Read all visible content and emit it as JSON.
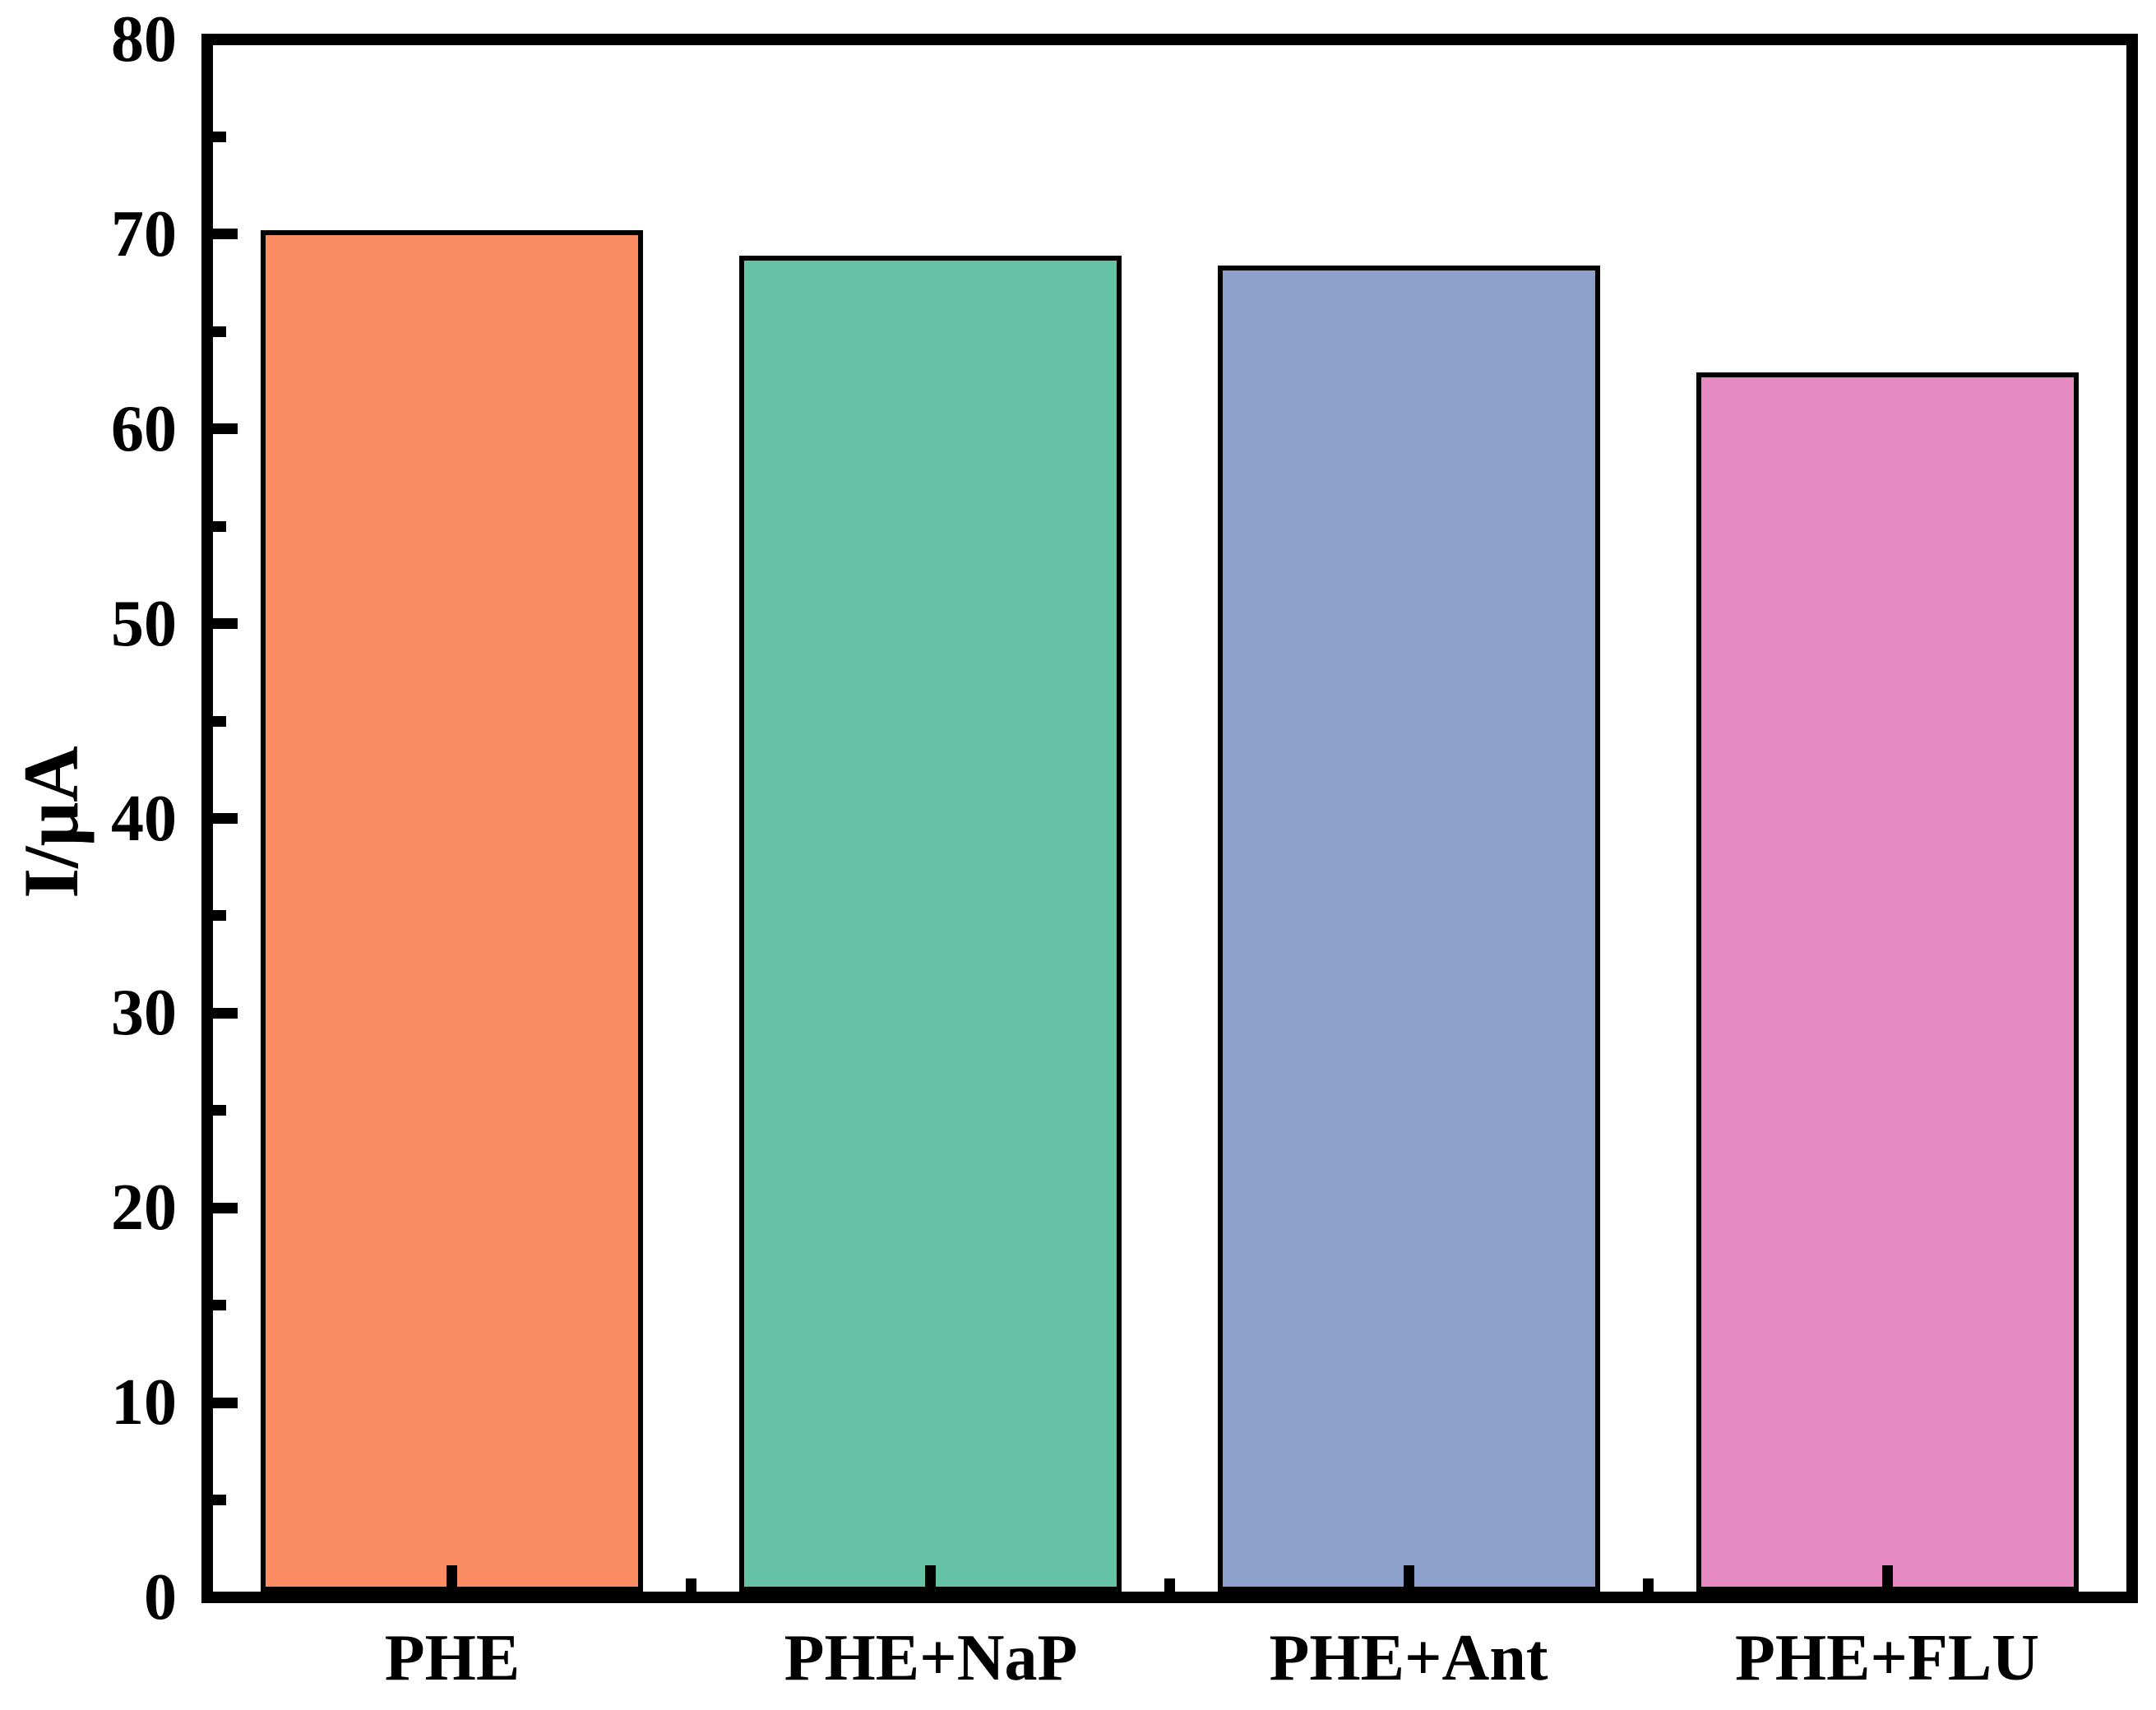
{
  "figure": {
    "background_color": "#ffffff",
    "axis_color": "#000000"
  },
  "chart_data": {
    "type": "bar",
    "title": "",
    "categories": [
      "PHE",
      "PHE+NaP",
      "PHE+Ant",
      "PHE+FLU"
    ],
    "values": [
      70.2,
      68.9,
      68.4,
      62.9
    ],
    "bar_colors": [
      "#FC8D62",
      "#66C2A5",
      "#8DA0CB",
      "#E78AC3"
    ],
    "bar_edge_color": "#000000",
    "xlabel": "",
    "ylabel": "I/μA",
    "ylim": [
      0,
      80
    ],
    "y_major_tick_step": 10,
    "y_minor_tick_step": 5,
    "y_tick_labels": [
      "0",
      "10",
      "20",
      "30",
      "40",
      "50",
      "60",
      "70",
      "80"
    ],
    "grid": false,
    "legend": null
  }
}
